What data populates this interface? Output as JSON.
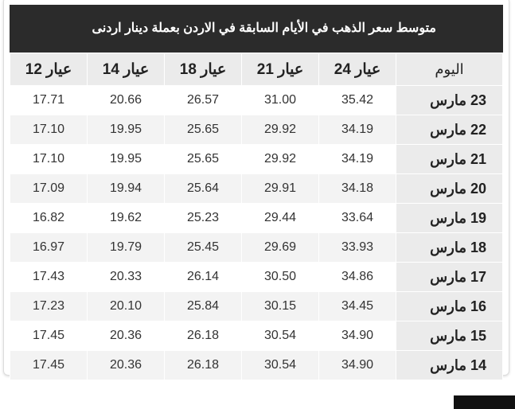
{
  "title": "متوسط سعر الذهب في الأيام السابقة في الاردن بعملة دينار اردنى",
  "headers": [
    "اليوم",
    "عيار 24",
    "عيار 21",
    "عيار 18",
    "عيار 14",
    "عيار 12"
  ],
  "rows": [
    [
      "23 مارس",
      "35.42",
      "31.00",
      "26.57",
      "20.66",
      "17.71"
    ],
    [
      "22 مارس",
      "34.19",
      "29.92",
      "25.65",
      "19.95",
      "17.10"
    ],
    [
      "21 مارس",
      "34.19",
      "29.92",
      "25.65",
      "19.95",
      "17.10"
    ],
    [
      "20 مارس",
      "34.18",
      "29.91",
      "25.64",
      "19.94",
      "17.09"
    ],
    [
      "19 مارس",
      "33.64",
      "29.44",
      "25.23",
      "19.62",
      "16.82"
    ],
    [
      "18 مارس",
      "33.93",
      "29.69",
      "25.45",
      "19.79",
      "16.97"
    ],
    [
      "17 مارس",
      "34.86",
      "30.50",
      "26.14",
      "20.33",
      "17.43"
    ],
    [
      "16 مارس",
      "34.45",
      "30.15",
      "25.84",
      "20.10",
      "17.23"
    ],
    [
      "15 مارس",
      "34.90",
      "30.54",
      "26.18",
      "20.36",
      "17.45"
    ],
    [
      "14 مارس",
      "34.90",
      "30.54",
      "26.18",
      "20.36",
      "17.45"
    ]
  ]
}
